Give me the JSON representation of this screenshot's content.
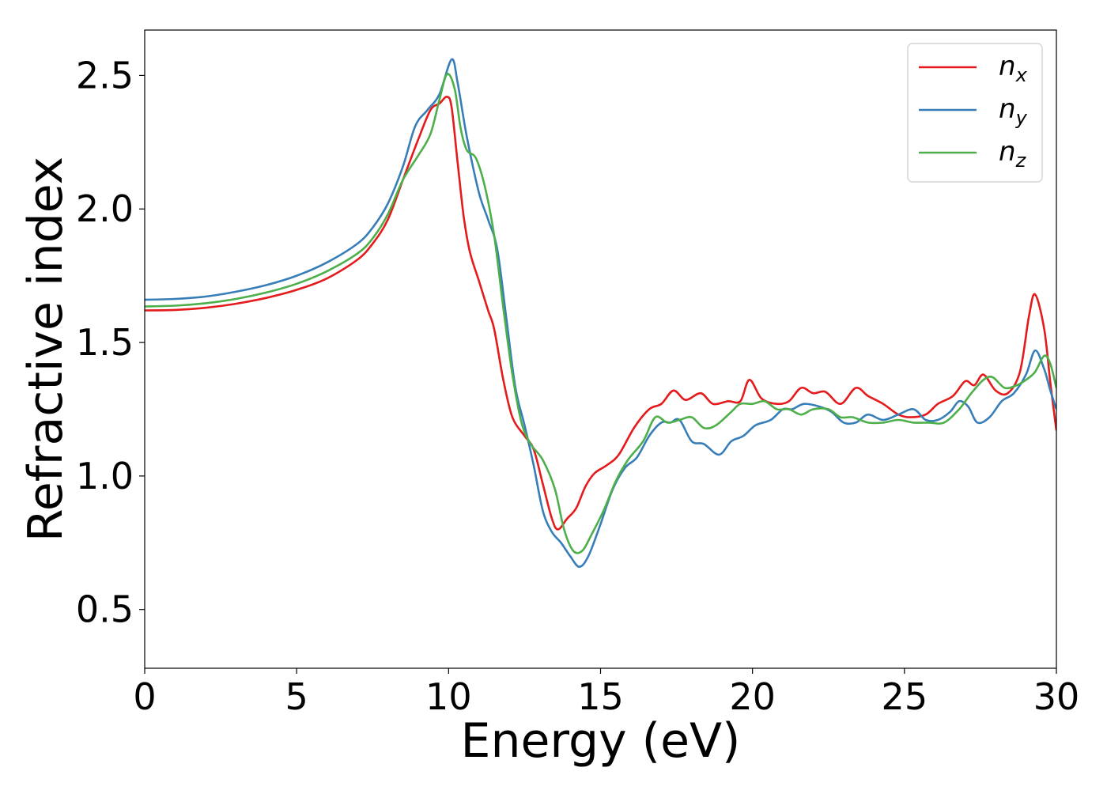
{
  "chart_data": {
    "type": "line",
    "title": "",
    "xlabel": "Energy (eV)",
    "ylabel": "Refractive index",
    "xlim": [
      0,
      30
    ],
    "ylim": [
      0.28,
      2.67
    ],
    "x_ticks": [
      "0",
      "5",
      "10",
      "15",
      "20",
      "25",
      "30"
    ],
    "x_tick_values": [
      0,
      5,
      10,
      15,
      20,
      25,
      30
    ],
    "y_ticks": [
      "0.5",
      "1.0",
      "1.5",
      "2.0",
      "2.5"
    ],
    "y_tick_values": [
      0.5,
      1.0,
      1.5,
      2.0,
      2.5
    ],
    "grid": false,
    "legend_position": "top-right",
    "series": [
      {
        "name": "n",
        "subscript": "x",
        "color": "#e41a1c",
        "points": [
          [
            0,
            1.62
          ],
          [
            1,
            1.622
          ],
          [
            2,
            1.63
          ],
          [
            3,
            1.645
          ],
          [
            4,
            1.667
          ],
          [
            5,
            1.697
          ],
          [
            6,
            1.74
          ],
          [
            7,
            1.81
          ],
          [
            7.5,
            1.87
          ],
          [
            8,
            1.96
          ],
          [
            8.5,
            2.11
          ],
          [
            9,
            2.26
          ],
          [
            9.4,
            2.37
          ],
          [
            9.7,
            2.395
          ],
          [
            9.95,
            2.42
          ],
          [
            10.1,
            2.38
          ],
          [
            10.3,
            2.17
          ],
          [
            10.5,
            1.97
          ],
          [
            10.7,
            1.84
          ],
          [
            11,
            1.73
          ],
          [
            11.3,
            1.62
          ],
          [
            11.5,
            1.55
          ],
          [
            11.8,
            1.36
          ],
          [
            12.1,
            1.22
          ],
          [
            12.5,
            1.15
          ],
          [
            12.8,
            1.1
          ],
          [
            13.1,
            0.97
          ],
          [
            13.4,
            0.84
          ],
          [
            13.6,
            0.8
          ],
          [
            13.9,
            0.84
          ],
          [
            14.2,
            0.88
          ],
          [
            14.5,
            0.96
          ],
          [
            14.8,
            1.01
          ],
          [
            15.2,
            1.04
          ],
          [
            15.6,
            1.08
          ],
          [
            16.1,
            1.18
          ],
          [
            16.6,
            1.25
          ],
          [
            17,
            1.27
          ],
          [
            17.4,
            1.32
          ],
          [
            17.8,
            1.285
          ],
          [
            18.3,
            1.31
          ],
          [
            18.7,
            1.27
          ],
          [
            19.2,
            1.28
          ],
          [
            19.6,
            1.28
          ],
          [
            19.9,
            1.36
          ],
          [
            20.3,
            1.29
          ],
          [
            20.8,
            1.27
          ],
          [
            21.2,
            1.28
          ],
          [
            21.6,
            1.33
          ],
          [
            22,
            1.31
          ],
          [
            22.4,
            1.315
          ],
          [
            22.9,
            1.27
          ],
          [
            23.4,
            1.33
          ],
          [
            23.8,
            1.3
          ],
          [
            24.3,
            1.27
          ],
          [
            24.8,
            1.23
          ],
          [
            25.2,
            1.22
          ],
          [
            25.7,
            1.23
          ],
          [
            26.1,
            1.27
          ],
          [
            26.6,
            1.3
          ],
          [
            27,
            1.355
          ],
          [
            27.3,
            1.34
          ],
          [
            27.6,
            1.38
          ],
          [
            28,
            1.32
          ],
          [
            28.4,
            1.31
          ],
          [
            28.8,
            1.39
          ],
          [
            29.1,
            1.6
          ],
          [
            29.3,
            1.68
          ],
          [
            29.6,
            1.55
          ],
          [
            29.8,
            1.35
          ],
          [
            30,
            1.17
          ]
        ]
      },
      {
        "name": "n",
        "subscript": "y",
        "color": "#377eb8",
        "points": [
          [
            0,
            1.66
          ],
          [
            1,
            1.663
          ],
          [
            2,
            1.672
          ],
          [
            3,
            1.69
          ],
          [
            4,
            1.715
          ],
          [
            5,
            1.75
          ],
          [
            6,
            1.8
          ],
          [
            7,
            1.87
          ],
          [
            7.5,
            1.93
          ],
          [
            8,
            2.02
          ],
          [
            8.5,
            2.16
          ],
          [
            8.9,
            2.31
          ],
          [
            9.3,
            2.37
          ],
          [
            9.7,
            2.43
          ],
          [
            10.1,
            2.56
          ],
          [
            10.3,
            2.47
          ],
          [
            10.6,
            2.27
          ],
          [
            11,
            2.06
          ],
          [
            11.3,
            1.96
          ],
          [
            11.6,
            1.85
          ],
          [
            11.9,
            1.59
          ],
          [
            12.2,
            1.33
          ],
          [
            12.5,
            1.19
          ],
          [
            12.8,
            1.04
          ],
          [
            13.1,
            0.87
          ],
          [
            13.4,
            0.79
          ],
          [
            13.7,
            0.75
          ],
          [
            14,
            0.7
          ],
          [
            14.3,
            0.66
          ],
          [
            14.6,
            0.7
          ],
          [
            15,
            0.82
          ],
          [
            15.4,
            0.95
          ],
          [
            15.8,
            1.03
          ],
          [
            16.2,
            1.07
          ],
          [
            16.6,
            1.15
          ],
          [
            17,
            1.2
          ],
          [
            17.3,
            1.2
          ],
          [
            17.6,
            1.21
          ],
          [
            18,
            1.13
          ],
          [
            18.4,
            1.12
          ],
          [
            18.9,
            1.08
          ],
          [
            19.3,
            1.13
          ],
          [
            19.7,
            1.15
          ],
          [
            20.1,
            1.19
          ],
          [
            20.6,
            1.21
          ],
          [
            21,
            1.25
          ],
          [
            21.3,
            1.25
          ],
          [
            21.7,
            1.27
          ],
          [
            22.2,
            1.26
          ],
          [
            22.6,
            1.24
          ],
          [
            23,
            1.2
          ],
          [
            23.4,
            1.2
          ],
          [
            23.8,
            1.23
          ],
          [
            24.3,
            1.21
          ],
          [
            24.8,
            1.23
          ],
          [
            25.3,
            1.25
          ],
          [
            25.7,
            1.21
          ],
          [
            26.1,
            1.21
          ],
          [
            26.5,
            1.24
          ],
          [
            26.8,
            1.28
          ],
          [
            27.1,
            1.26
          ],
          [
            27.4,
            1.2
          ],
          [
            27.8,
            1.22
          ],
          [
            28.2,
            1.28
          ],
          [
            28.6,
            1.31
          ],
          [
            29,
            1.38
          ],
          [
            29.3,
            1.47
          ],
          [
            29.6,
            1.4
          ],
          [
            29.8,
            1.32
          ],
          [
            30,
            1.25
          ]
        ]
      },
      {
        "name": "n",
        "subscript": "z",
        "color": "#4daf4a",
        "points": [
          [
            0,
            1.635
          ],
          [
            1,
            1.638
          ],
          [
            2,
            1.647
          ],
          [
            3,
            1.663
          ],
          [
            4,
            1.687
          ],
          [
            5,
            1.72
          ],
          [
            6,
            1.767
          ],
          [
            7,
            1.833
          ],
          [
            7.5,
            1.89
          ],
          [
            8,
            1.98
          ],
          [
            8.5,
            2.11
          ],
          [
            9,
            2.2
          ],
          [
            9.4,
            2.28
          ],
          [
            9.7,
            2.41
          ],
          [
            9.95,
            2.505
          ],
          [
            10.2,
            2.45
          ],
          [
            10.4,
            2.3
          ],
          [
            10.6,
            2.22
          ],
          [
            10.9,
            2.19
          ],
          [
            11.2,
            2.08
          ],
          [
            11.5,
            1.9
          ],
          [
            11.8,
            1.63
          ],
          [
            12.1,
            1.38
          ],
          [
            12.4,
            1.2
          ],
          [
            12.7,
            1.12
          ],
          [
            13.1,
            1.06
          ],
          [
            13.5,
            0.95
          ],
          [
            13.8,
            0.8
          ],
          [
            14.1,
            0.72
          ],
          [
            14.4,
            0.72
          ],
          [
            14.7,
            0.78
          ],
          [
            15.1,
            0.87
          ],
          [
            15.5,
            0.98
          ],
          [
            15.9,
            1.06
          ],
          [
            16.4,
            1.13
          ],
          [
            16.8,
            1.22
          ],
          [
            17.2,
            1.2
          ],
          [
            17.6,
            1.21
          ],
          [
            18,
            1.22
          ],
          [
            18.4,
            1.18
          ],
          [
            18.8,
            1.19
          ],
          [
            19.3,
            1.24
          ],
          [
            19.6,
            1.27
          ],
          [
            20,
            1.27
          ],
          [
            20.4,
            1.28
          ],
          [
            20.8,
            1.25
          ],
          [
            21.2,
            1.25
          ],
          [
            21.6,
            1.23
          ],
          [
            22,
            1.25
          ],
          [
            22.5,
            1.25
          ],
          [
            22.9,
            1.22
          ],
          [
            23.3,
            1.22
          ],
          [
            23.8,
            1.2
          ],
          [
            24.3,
            1.2
          ],
          [
            24.8,
            1.21
          ],
          [
            25.3,
            1.2
          ],
          [
            25.8,
            1.2
          ],
          [
            26.3,
            1.2
          ],
          [
            26.8,
            1.25
          ],
          [
            27.2,
            1.31
          ],
          [
            27.6,
            1.36
          ],
          [
            27.9,
            1.37
          ],
          [
            28.3,
            1.33
          ],
          [
            28.7,
            1.34
          ],
          [
            29,
            1.36
          ],
          [
            29.3,
            1.39
          ],
          [
            29.6,
            1.45
          ],
          [
            29.8,
            1.42
          ],
          [
            30,
            1.33
          ]
        ]
      }
    ]
  }
}
